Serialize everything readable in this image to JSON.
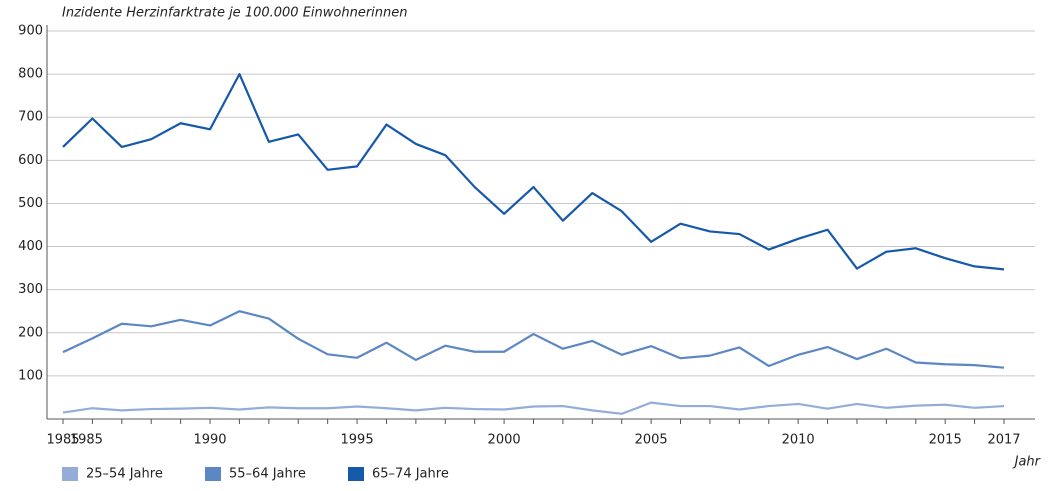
{
  "chart_data": {
    "type": "line",
    "title": "Inzidente Herzinfarktrate je 100.000 Einwohnerinnen",
    "x_label": "Jahr",
    "categories": [
      "1985",
      "1985",
      null,
      null,
      null,
      "1990",
      null,
      null,
      null,
      null,
      "1995",
      null,
      null,
      null,
      null,
      "2000",
      null,
      null,
      null,
      null,
      "2005",
      null,
      null,
      null,
      null,
      "2010",
      null,
      null,
      null,
      null,
      "2015",
      null,
      "2017"
    ],
    "series": [
      {
        "name": "25–54 Jahre",
        "color": "#94acd8",
        "values": [
          15,
          25,
          20,
          23,
          24,
          26,
          22,
          27,
          25,
          25,
          29,
          25,
          20,
          26,
          23,
          22,
          29,
          30,
          20,
          12,
          38,
          30,
          30,
          22,
          30,
          35,
          24,
          35,
          26,
          31,
          33,
          26,
          30
        ]
      },
      {
        "name": "55–64 Jahre",
        "color": "#5b87c5",
        "values": [
          155,
          187,
          221,
          215,
          230,
          217,
          250,
          233,
          186,
          150,
          142,
          177,
          137,
          170,
          156,
          156,
          197,
          163,
          181,
          149,
          169,
          141,
          147,
          166,
          123,
          149,
          167,
          139,
          163,
          131,
          127,
          125,
          119
        ]
      },
      {
        "name": "65–74 Jahre",
        "color": "#1659ab",
        "values": [
          631,
          697,
          631,
          649,
          686,
          672,
          800,
          643,
          660,
          578,
          586,
          683,
          638,
          612,
          538,
          476,
          538,
          460,
          524,
          482,
          411,
          453,
          435,
          429,
          393,
          418,
          439,
          349,
          388,
          396,
          373,
          354,
          347
        ]
      }
    ],
    "ylim": [
      0,
      900
    ],
    "yticks": [
      100,
      200,
      300,
      400,
      500,
      600,
      700,
      800,
      900
    ],
    "grid": true,
    "legend": "bottom-left"
  }
}
